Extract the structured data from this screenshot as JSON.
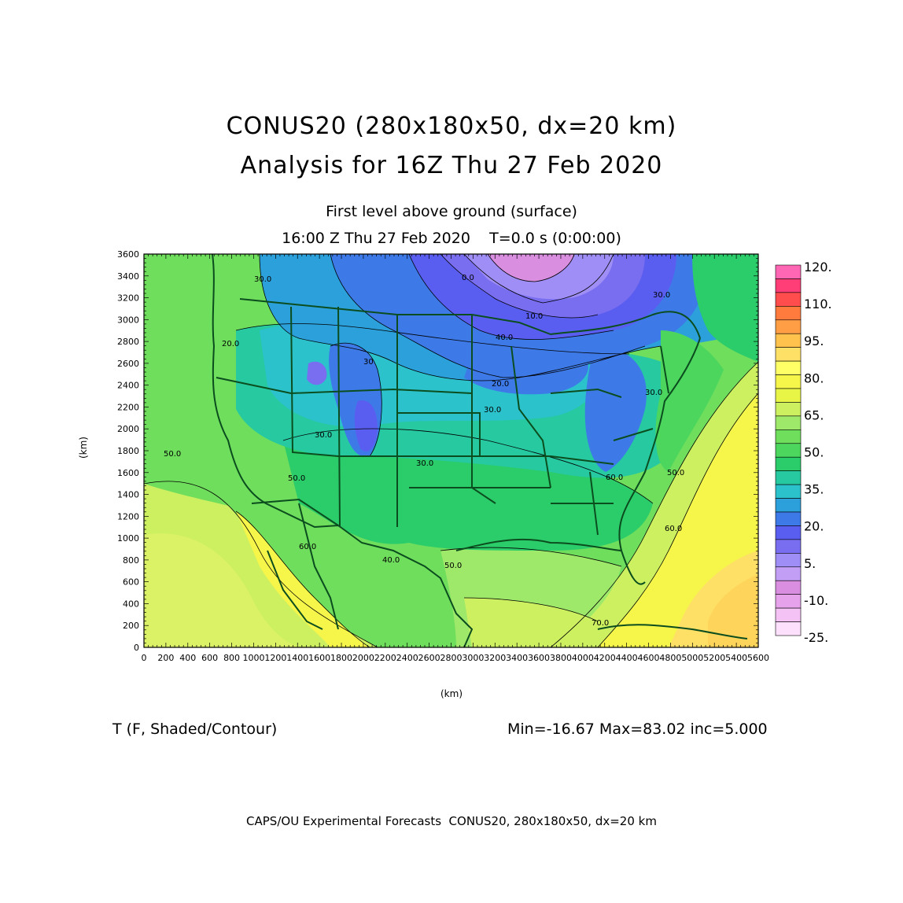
{
  "title": "CONUS20 (280x180x50, dx=20 km)",
  "subtitle": "Analysis for 16Z Thu 27 Feb 2020",
  "level": "First level above ground (surface)",
  "valid_time": "16:00 Z Thu 27 Feb 2020    T=0.0 s (0:00:00)",
  "field_label": "T (F, Shaded/Contour)",
  "stats": "Min=-16.67 Max=83.02 inc=5.000",
  "footer": "CAPS/OU Experimental Forecasts  CONUS20, 280x180x50, dx=20 km",
  "axes": {
    "x_unit": "(km)",
    "y_unit": "(km)",
    "x_ticks": [
      "0",
      "200",
      "400",
      "600",
      "800",
      "1000",
      "1200",
      "1400",
      "1600",
      "1800",
      "2000",
      "2200",
      "2400",
      "2600",
      "2800",
      "3000",
      "3200",
      "3400",
      "3600",
      "3800",
      "4000",
      "4200",
      "4400",
      "4600",
      "4800",
      "5000",
      "5200",
      "5400",
      "5600"
    ],
    "y_ticks": [
      "0",
      "200",
      "400",
      "600",
      "800",
      "1000",
      "1200",
      "1400",
      "1600",
      "1800",
      "2000",
      "2200",
      "2400",
      "2600",
      "2800",
      "3000",
      "3200",
      "3400",
      "3600"
    ],
    "x_range": [
      0,
      5600
    ],
    "y_range": [
      0,
      3600
    ]
  },
  "colorbar": {
    "labels": [
      "120.",
      "110.",
      "95.",
      "80.",
      "65.",
      "50.",
      "35.",
      "20.",
      "5.",
      "-10.",
      "-25."
    ],
    "colors": [
      "#ff66b3",
      "#ff3d77",
      "#ff4d4d",
      "#ff7a3d",
      "#ff9e45",
      "#ffc24d",
      "#ffe066",
      "#ffff66",
      "#f5f54a",
      "#e8f547",
      "#cdf060",
      "#9ee86a",
      "#6ede5c",
      "#4cd65e",
      "#2bcc6a",
      "#26c9a0",
      "#2bc2cc",
      "#2ba0db",
      "#3d7ae8",
      "#5a5ef0",
      "#7a6ef0",
      "#9e8ef5",
      "#c29ef5",
      "#d98ee0",
      "#e6a3eb",
      "#f5c2f5",
      "#fce0fc"
    ],
    "colors_top_to_bottom": true
  },
  "contour_labels": [
    "30.0",
    "30.0",
    "30",
    "30.0",
    "20.0",
    "30.0",
    "30.0",
    "40.0",
    "30.0",
    "20.0",
    "50.0",
    "50.0",
    "50.0",
    "60.0",
    "60.0",
    "40.0",
    "50.0",
    "60.0",
    "70.0",
    "10.0",
    "0.0"
  ],
  "colors": {
    "frame": "#000000",
    "boundaries": "#0b4d1e"
  }
}
